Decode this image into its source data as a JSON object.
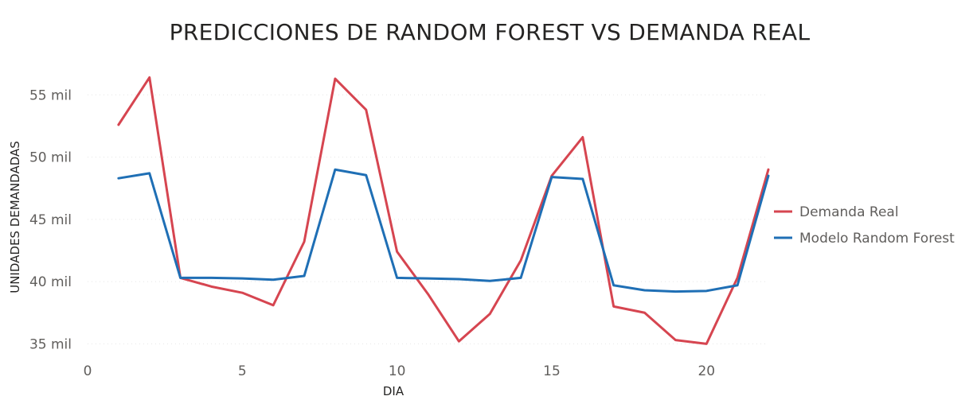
{
  "chart_data": {
    "type": "line",
    "title": "PREDICCIONES DE RANDOM FOREST VS DEMANDA REAL",
    "xlabel": "DIA",
    "ylabel": "UNIDADES DEMANDADAS",
    "xlim": [
      0,
      22
    ],
    "ylim": [
      34000,
      57000
    ],
    "x_ticks": [
      {
        "value": 0,
        "label": "0"
      },
      {
        "value": 5,
        "label": "5"
      },
      {
        "value": 10,
        "label": "10"
      },
      {
        "value": 15,
        "label": "15"
      },
      {
        "value": 20,
        "label": "20"
      }
    ],
    "y_ticks": [
      {
        "value": 35000,
        "label": "35 mil"
      },
      {
        "value": 40000,
        "label": "40 mil"
      },
      {
        "value": 45000,
        "label": "45 mil"
      },
      {
        "value": 50000,
        "label": "50 mil"
      },
      {
        "value": 55000,
        "label": "55 mil"
      }
    ],
    "grid": true,
    "legend": "right",
    "x": [
      1,
      2,
      3,
      4,
      5,
      6,
      7,
      8,
      9,
      10,
      11,
      12,
      13,
      14,
      15,
      16,
      17,
      18,
      19,
      20,
      21,
      22
    ],
    "series": [
      {
        "name": "Demanda Real",
        "color": "#d64550",
        "values": [
          52600,
          56400,
          40300,
          39600,
          39100,
          38100,
          43200,
          56300,
          53800,
          42400,
          39000,
          35200,
          37400,
          41700,
          48500,
          51600,
          38000,
          37500,
          35300,
          35000,
          40300,
          49000
        ]
      },
      {
        "name": "Modelo Random Forest",
        "color": "#1f6fb5",
        "values": [
          48300,
          48700,
          40300,
          40300,
          40250,
          40150,
          40450,
          49000,
          48550,
          40300,
          40250,
          40200,
          40050,
          40300,
          48400,
          48250,
          39700,
          39300,
          39200,
          39250,
          39700,
          48500
        ]
      }
    ]
  }
}
